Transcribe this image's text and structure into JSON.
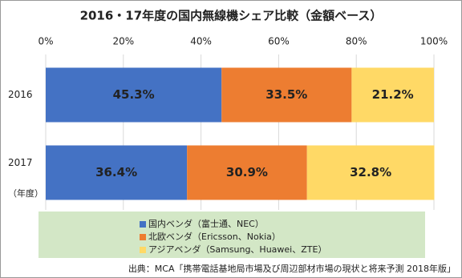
{
  "chart_data": {
    "type": "bar",
    "orientation": "horizontal",
    "stacked": true,
    "title": "2016・17年度の国内無線機シェア比較（金額ベース）",
    "categories": [
      "2016",
      "2017"
    ],
    "series": [
      {
        "name": "国内ベンダ（富士通、NEC）",
        "color": "#4472c4",
        "values": [
          45.3,
          36.4
        ],
        "value_labels": [
          "45.3%",
          "36.4%"
        ]
      },
      {
        "name": "北欧ベンダ（Ericsson、Nokia）",
        "color": "#ed7d31",
        "values": [
          33.5,
          30.9
        ],
        "value_labels": [
          "33.5%",
          "30.9%"
        ]
      },
      {
        "name": "アジアベンダ（Samsung、Huawei、ZTE）",
        "color": "#ffd966",
        "values": [
          21.2,
          32.8
        ],
        "value_labels": [
          "21.2%",
          "32.8%"
        ]
      }
    ],
    "xlim": [
      0,
      100
    ],
    "xticks": [
      {
        "value": 0,
        "label": "0%"
      },
      {
        "value": 20,
        "label": "20%"
      },
      {
        "value": 40,
        "label": "40%"
      },
      {
        "value": 60,
        "label": "60%"
      },
      {
        "value": 80,
        "label": "80%"
      },
      {
        "value": 100,
        "label": "100%"
      }
    ],
    "grid": true,
    "legend_position": "bottom",
    "category_axis_label": "（年度）",
    "source": "出典：MCA「携帯電話基地局市場及び周辺部材市場の現状と将来予測 2018年版」"
  }
}
